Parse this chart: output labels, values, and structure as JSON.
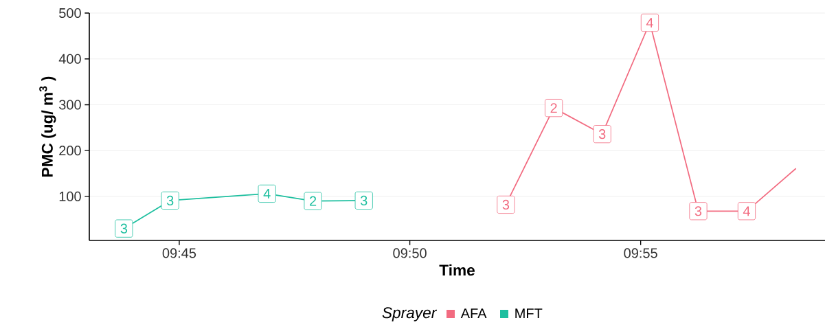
{
  "chart_data": {
    "type": "line",
    "xlabel": "Time",
    "ylabel": "PMC (ug/ m$^{3}$ )",
    "legend_title": "Sprayer",
    "legend": "bottom",
    "grid": "y",
    "marker": "square",
    "line_style": "solid",
    "xlim": [
      9.7175,
      9.9833
    ],
    "ylim": [
      4,
      500
    ],
    "xticks": [
      {
        "value": 9.75,
        "label": "09:45"
      },
      {
        "value": 9.8333,
        "label": "09:50"
      },
      {
        "value": 9.9167,
        "label": "09:55"
      }
    ],
    "yticks": [
      100,
      200,
      300,
      400,
      500
    ],
    "series": [
      {
        "name": "AFA",
        "color": "#f26b80",
        "x": [
          9.868,
          9.8853,
          9.9028,
          9.92,
          9.9375,
          9.955,
          9.9728
        ],
        "values": [
          82,
          293,
          236,
          479,
          68,
          68,
          161
        ]
      },
      {
        "name": "MFT",
        "color": "#1dbf9f",
        "x": [
          9.73,
          9.7467,
          9.7817,
          9.7983,
          9.8167
        ],
        "values": [
          30,
          91,
          106,
          90,
          91
        ]
      }
    ],
    "annotations": [
      {
        "text": "3",
        "x": 9.868,
        "y": 82
      },
      {
        "text": "2",
        "x": 9.8853,
        "y": 293
      },
      {
        "text": "3",
        "x": 9.9028,
        "y": 236
      },
      {
        "text": "4",
        "x": 9.92,
        "y": 479
      },
      {
        "text": "3",
        "x": 9.9375,
        "y": 68
      },
      {
        "text": "4",
        "x": 9.955,
        "y": 68
      },
      {
        "text": "3",
        "x": 9.73,
        "y": 30
      },
      {
        "text": "3",
        "x": 9.7467,
        "y": 91
      },
      {
        "text": "4",
        "x": 9.7817,
        "y": 106
      },
      {
        "text": "2",
        "x": 9.7983,
        "y": 90
      },
      {
        "text": "3",
        "x": 9.8167,
        "y": 91
      }
    ]
  }
}
